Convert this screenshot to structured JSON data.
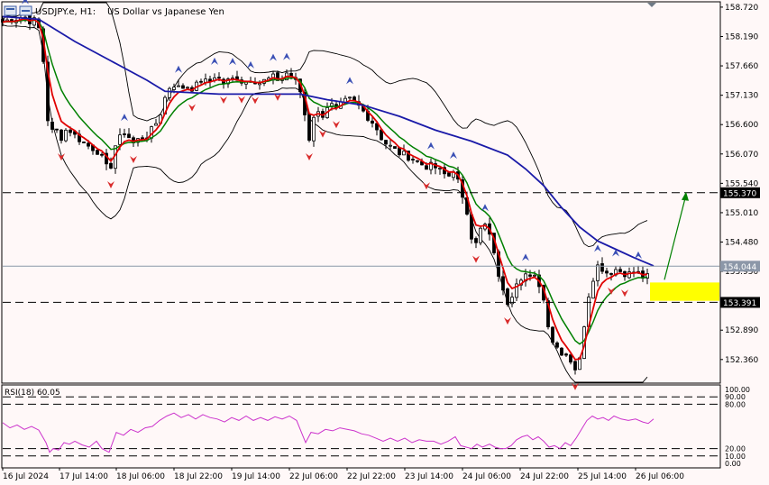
{
  "header": {
    "symbol": "USDJPY.e, H1:",
    "description": "US Dollar vs Japanese Yen"
  },
  "colors": {
    "background": "#fff8f8",
    "candle": "#000000",
    "ma_fast": "#e00000",
    "ma_mid": "#008000",
    "ma_slow": "#1a1aa8",
    "bands": "#000000",
    "rsi_line": "#cc33cc",
    "highlight_zone": "#ffff00",
    "projection_arrow": "#008000",
    "fractal_up": "#3a4fb5",
    "fractal_down": "#d92b2b"
  },
  "price_axis": {
    "ticks": [
      "158.720",
      "158.190",
      "157.660",
      "157.130",
      "156.600",
      "156.070",
      "155.540",
      "155.010",
      "154.480",
      "153.950",
      "153.420",
      "152.890",
      "152.360"
    ],
    "badges": [
      {
        "label": "155.370",
        "value": 155.37,
        "line": "dashed"
      },
      {
        "label": "154.044",
        "value": 154.044,
        "line": "solid"
      },
      {
        "label": "153.391",
        "value": 153.391,
        "line": "dashed"
      }
    ],
    "range": [
      151.95,
      158.8
    ]
  },
  "time_axis": {
    "labels": [
      "16 Jul 2024",
      "17 Jul 14:00",
      "18 Jul 06:00",
      "18 Jul 22:00",
      "19 Jul 14:00",
      "22 Jul 06:00",
      "22 Jul 22:00",
      "23 Jul 14:00",
      "24 Jul 06:00",
      "24 Jul 22:00",
      "25 Jul 14:00",
      "26 Jul 06:00"
    ]
  },
  "rsi": {
    "label": "RSI(18) 60.05",
    "axis_labels": [
      "100.00",
      "90.00",
      "80.00",
      "20.00",
      "10.00",
      "0.00"
    ],
    "levels": [
      90,
      80,
      20,
      10
    ]
  },
  "chart_data": {
    "type": "candlestick",
    "title": "USDJPY.e, H1: US Dollar vs Japanese Yen",
    "price_path": [
      [
        0,
        158.45
      ],
      [
        8,
        158.5
      ],
      [
        16,
        158.52
      ],
      [
        24,
        158.55
      ],
      [
        32,
        158.45
      ],
      [
        38,
        158.5
      ],
      [
        44,
        158.0
      ],
      [
        48,
        157.0
      ],
      [
        52,
        156.4
      ],
      [
        58,
        156.55
      ],
      [
        64,
        156.35
      ],
      [
        72,
        156.55
      ],
      [
        80,
        156.4
      ],
      [
        88,
        156.3
      ],
      [
        96,
        156.2
      ],
      [
        104,
        156.15
      ],
      [
        112,
        155.95
      ],
      [
        118,
        155.7
      ],
      [
        124,
        156.2
      ],
      [
        130,
        156.35
      ],
      [
        136,
        156.5
      ],
      [
        144,
        156.25
      ],
      [
        152,
        156.35
      ],
      [
        160,
        156.4
      ],
      [
        168,
        156.55
      ],
      [
        176,
        156.85
      ],
      [
        182,
        157.2
      ],
      [
        188,
        157.35
      ],
      [
        196,
        157.25
      ],
      [
        204,
        157.3
      ],
      [
        212,
        157.25
      ],
      [
        220,
        157.4
      ],
      [
        228,
        157.35
      ],
      [
        236,
        157.5
      ],
      [
        244,
        157.35
      ],
      [
        252,
        157.4
      ],
      [
        260,
        157.45
      ],
      [
        268,
        157.35
      ],
      [
        276,
        157.45
      ],
      [
        284,
        157.35
      ],
      [
        292,
        157.4
      ],
      [
        300,
        157.45
      ],
      [
        308,
        157.4
      ],
      [
        316,
        157.55
      ],
      [
        324,
        157.4
      ],
      [
        330,
        157.2
      ],
      [
        336,
        156.7
      ],
      [
        340,
        156.35
      ],
      [
        346,
        156.85
      ],
      [
        354,
        156.75
      ],
      [
        362,
        157.0
      ],
      [
        370,
        156.85
      ],
      [
        378,
        157.0
      ],
      [
        386,
        157.05
      ],
      [
        394,
        156.95
      ],
      [
        402,
        156.8
      ],
      [
        410,
        156.65
      ],
      [
        416,
        156.5
      ],
      [
        422,
        156.3
      ],
      [
        430,
        156.2
      ],
      [
        438,
        156.1
      ],
      [
        446,
        156.05
      ],
      [
        454,
        156.0
      ],
      [
        462,
        155.9
      ],
      [
        470,
        155.85
      ],
      [
        478,
        155.85
      ],
      [
        486,
        155.75
      ],
      [
        494,
        155.65
      ],
      [
        502,
        155.85
      ],
      [
        508,
        155.3
      ],
      [
        514,
        155.1
      ],
      [
        520,
        154.6
      ],
      [
        526,
        154.5
      ],
      [
        532,
        154.8
      ],
      [
        538,
        154.75
      ],
      [
        544,
        154.3
      ],
      [
        550,
        153.9
      ],
      [
        556,
        153.5
      ],
      [
        562,
        153.35
      ],
      [
        568,
        153.75
      ],
      [
        574,
        153.85
      ],
      [
        580,
        153.9
      ],
      [
        586,
        153.8
      ],
      [
        592,
        153.85
      ],
      [
        598,
        153.6
      ],
      [
        604,
        153.1
      ],
      [
        608,
        152.75
      ],
      [
        614,
        152.6
      ],
      [
        620,
        152.5
      ],
      [
        626,
        152.45
      ],
      [
        632,
        152.3
      ],
      [
        638,
        152.1
      ],
      [
        642,
        152.6
      ],
      [
        648,
        153.4
      ],
      [
        654,
        153.8
      ],
      [
        660,
        154.05
      ],
      [
        666,
        154.0
      ],
      [
        672,
        153.9
      ],
      [
        678,
        154.0
      ],
      [
        686,
        153.95
      ],
      [
        694,
        153.9
      ],
      [
        702,
        153.95
      ],
      [
        710,
        153.85
      ],
      [
        716,
        153.85
      ],
      [
        722,
        153.75
      ]
    ],
    "ma_slow_path": [
      [
        0,
        158.55
      ],
      [
        40,
        158.5
      ],
      [
        80,
        158.1
      ],
      [
        120,
        157.75
      ],
      [
        160,
        157.4
      ],
      [
        180,
        157.2
      ],
      [
        240,
        157.15
      ],
      [
        300,
        157.15
      ],
      [
        330,
        157.15
      ],
      [
        360,
        157.05
      ],
      [
        400,
        156.95
      ],
      [
        440,
        156.75
      ],
      [
        480,
        156.5
      ],
      [
        520,
        156.3
      ],
      [
        560,
        156.05
      ],
      [
        580,
        155.8
      ],
      [
        600,
        155.5
      ],
      [
        620,
        155.1
      ],
      [
        640,
        154.75
      ],
      [
        660,
        154.5
      ],
      [
        680,
        154.35
      ],
      [
        700,
        154.2
      ],
      [
        722,
        154.05
      ]
    ],
    "projection": {
      "from": [
        722,
        153.8
      ],
      "to": [
        760,
        155.37
      ],
      "color": "#008000"
    },
    "rsi_path": [
      [
        0,
        55
      ],
      [
        8,
        48
      ],
      [
        16,
        52
      ],
      [
        24,
        46
      ],
      [
        32,
        50
      ],
      [
        40,
        45
      ],
      [
        48,
        28
      ],
      [
        52,
        15
      ],
      [
        56,
        20
      ],
      [
        62,
        18
      ],
      [
        68,
        28
      ],
      [
        74,
        26
      ],
      [
        80,
        30
      ],
      [
        88,
        25
      ],
      [
        96,
        22
      ],
      [
        104,
        30
      ],
      [
        110,
        20
      ],
      [
        118,
        15
      ],
      [
        126,
        42
      ],
      [
        134,
        38
      ],
      [
        142,
        46
      ],
      [
        150,
        42
      ],
      [
        158,
        48
      ],
      [
        166,
        50
      ],
      [
        174,
        58
      ],
      [
        182,
        64
      ],
      [
        190,
        68
      ],
      [
        198,
        62
      ],
      [
        206,
        66
      ],
      [
        214,
        60
      ],
      [
        222,
        66
      ],
      [
        230,
        62
      ],
      [
        238,
        60
      ],
      [
        246,
        56
      ],
      [
        254,
        62
      ],
      [
        262,
        58
      ],
      [
        270,
        64
      ],
      [
        278,
        58
      ],
      [
        286,
        62
      ],
      [
        294,
        58
      ],
      [
        302,
        63
      ],
      [
        310,
        60
      ],
      [
        318,
        64
      ],
      [
        326,
        58
      ],
      [
        332,
        40
      ],
      [
        336,
        28
      ],
      [
        342,
        42
      ],
      [
        350,
        40
      ],
      [
        358,
        46
      ],
      [
        366,
        44
      ],
      [
        374,
        48
      ],
      [
        382,
        46
      ],
      [
        390,
        44
      ],
      [
        398,
        40
      ],
      [
        406,
        38
      ],
      [
        414,
        34
      ],
      [
        422,
        30
      ],
      [
        430,
        34
      ],
      [
        438,
        30
      ],
      [
        446,
        34
      ],
      [
        454,
        28
      ],
      [
        462,
        32
      ],
      [
        470,
        30
      ],
      [
        478,
        30
      ],
      [
        486,
        26
      ],
      [
        494,
        30
      ],
      [
        502,
        36
      ],
      [
        508,
        24
      ],
      [
        514,
        22
      ],
      [
        520,
        20
      ],
      [
        526,
        26
      ],
      [
        532,
        22
      ],
      [
        540,
        26
      ],
      [
        546,
        22
      ],
      [
        552,
        20
      ],
      [
        558,
        20
      ],
      [
        564,
        24
      ],
      [
        570,
        32
      ],
      [
        576,
        36
      ],
      [
        582,
        38
      ],
      [
        588,
        32
      ],
      [
        594,
        36
      ],
      [
        600,
        30
      ],
      [
        606,
        22
      ],
      [
        612,
        24
      ],
      [
        618,
        20
      ],
      [
        624,
        28
      ],
      [
        630,
        24
      ],
      [
        636,
        34
      ],
      [
        642,
        46
      ],
      [
        648,
        58
      ],
      [
        654,
        64
      ],
      [
        660,
        60
      ],
      [
        666,
        62
      ],
      [
        672,
        58
      ],
      [
        678,
        64
      ],
      [
        686,
        60
      ],
      [
        694,
        58
      ],
      [
        702,
        60
      ],
      [
        710,
        56
      ],
      [
        716,
        54
      ],
      [
        722,
        60
      ]
    ]
  }
}
